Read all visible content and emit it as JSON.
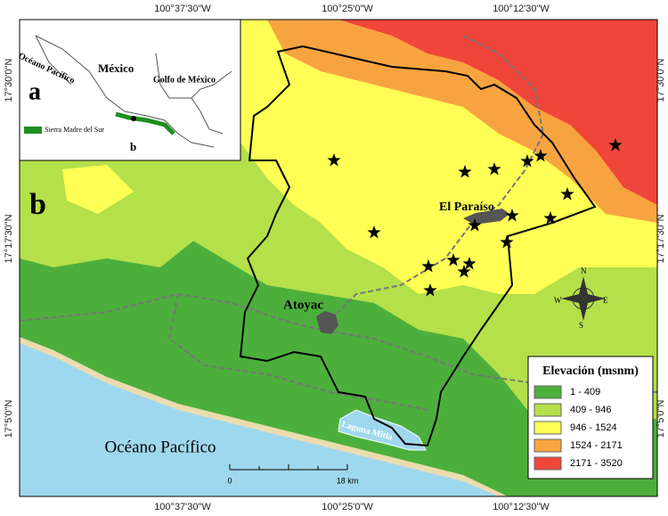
{
  "map": {
    "lon_labels": [
      "100°37'30\"W",
      "100°25'0\"W",
      "100°12'30\"W"
    ],
    "lat_labels": [
      "17°30'0\"N",
      "17°17'30\"N",
      "17°5'0\"N"
    ],
    "inset": {
      "panel": "a",
      "ocean": "Océano Pacífico",
      "country": "México",
      "gulf": "Golfo de México",
      "legend": "Sierra Madre del Sur",
      "marker": "b"
    },
    "main": {
      "panel": "b",
      "places": [
        "El Paraíso",
        "Atoyac"
      ],
      "ocean": "Océano Pacífico",
      "lagoon": "Laguna Mitla",
      "scale": [
        "0",
        "18 km"
      ],
      "compass": [
        "N",
        "S",
        "E",
        "W"
      ]
    },
    "legend": {
      "title": "Elevación (msnm)",
      "entries": [
        {
          "label": "1 - 409",
          "color": "#4caf3c"
        },
        {
          "label": "409 - 946",
          "color": "#b4e04a"
        },
        {
          "label": "946 - 1524",
          "color": "#ffff55"
        },
        {
          "label": "1524 - 2171",
          "color": "#f7a440"
        },
        {
          "label": "2171 - 3520",
          "color": "#f0453a"
        }
      ]
    }
  }
}
